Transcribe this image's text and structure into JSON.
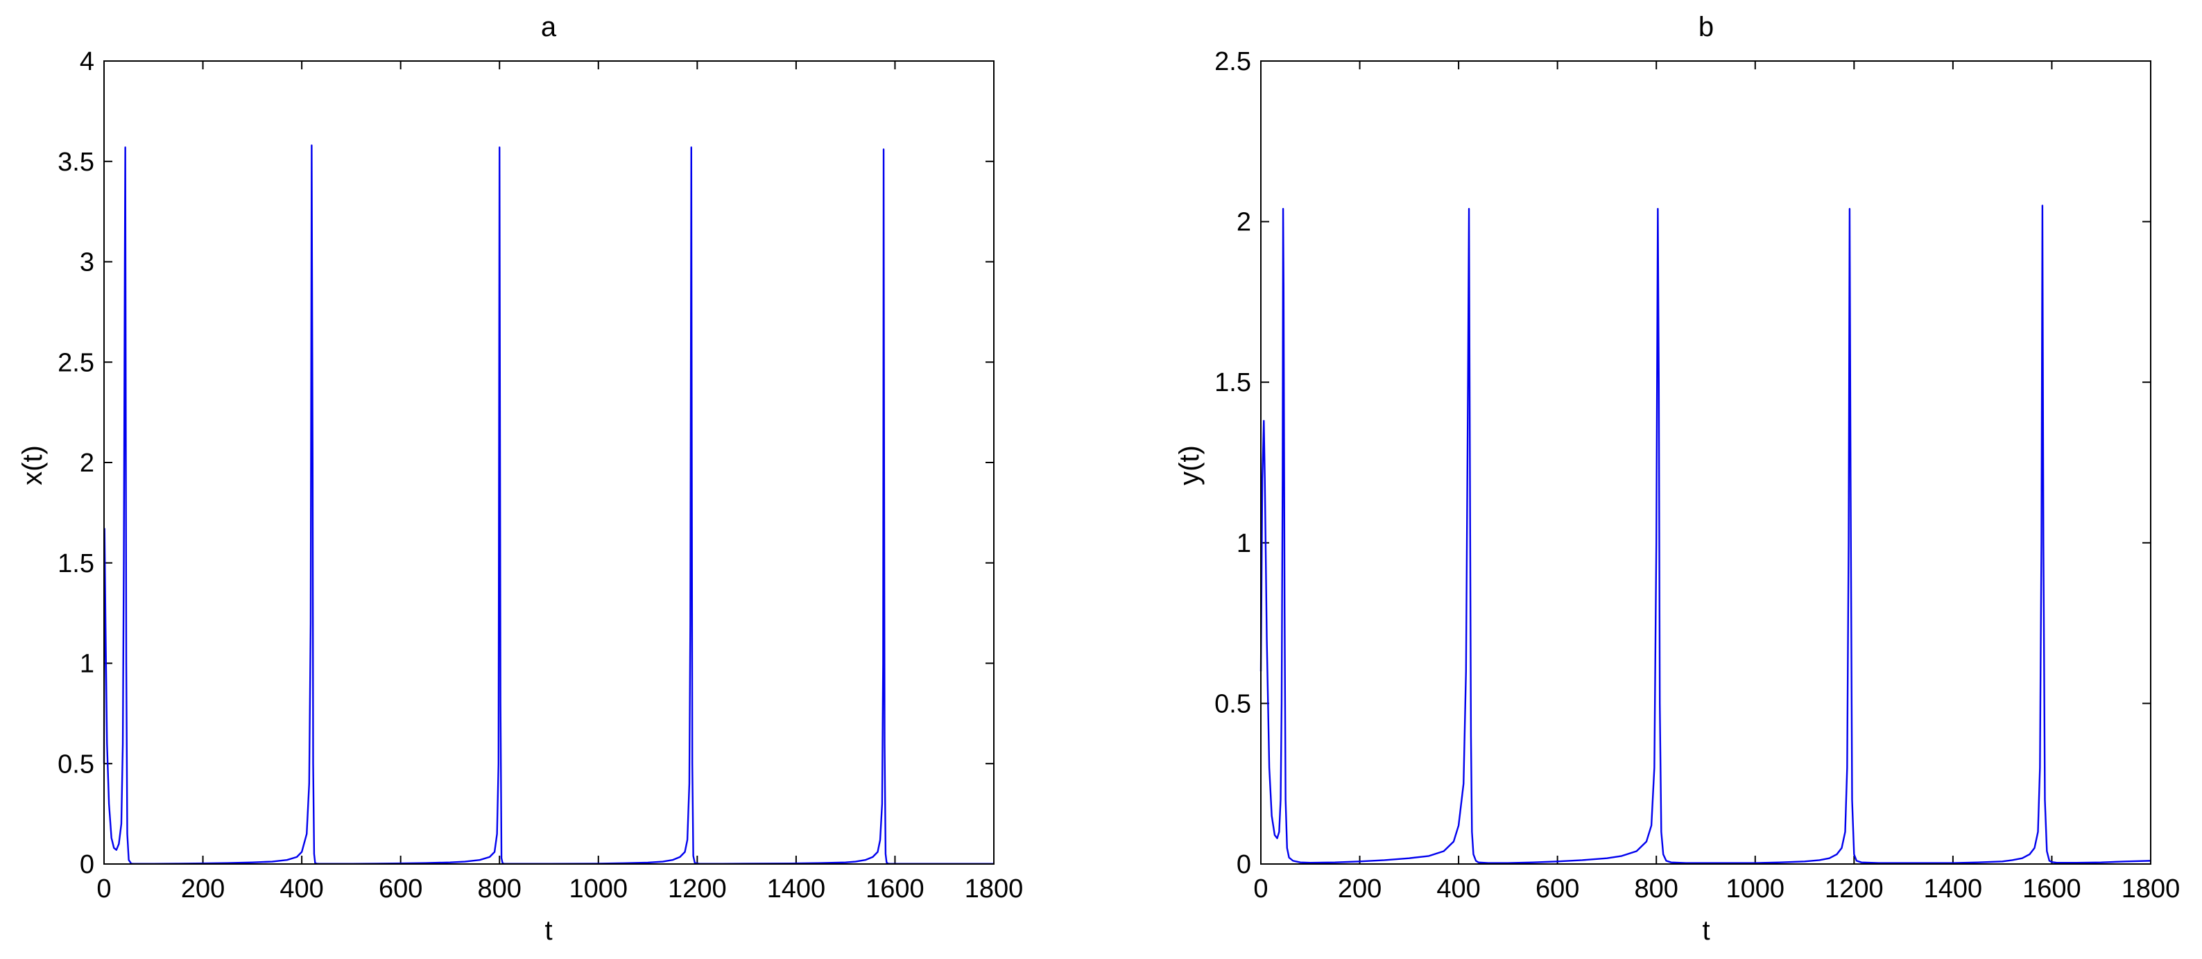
{
  "colors": {
    "line": "#0000ee",
    "axes": "#000000",
    "background": "#ffffff"
  },
  "chart_data": [
    {
      "type": "line",
      "title": "a",
      "xlabel": "t",
      "ylabel": "x(t)",
      "xlim": [
        0,
        1800
      ],
      "ylim": [
        0,
        4
      ],
      "xticks": [
        0,
        200,
        400,
        600,
        800,
        1000,
        1200,
        1400,
        1600,
        1800
      ],
      "xtick_labels": [
        "0",
        "200",
        "400",
        "600",
        "800",
        "1000",
        "1200",
        "1400",
        "1600",
        "1800"
      ],
      "yticks": [
        0,
        0.5,
        1,
        1.5,
        2,
        2.5,
        3,
        3.5,
        4
      ],
      "ytick_labels": [
        "0",
        "0.5",
        "1",
        "1.5",
        "2",
        "2.5",
        "3",
        "3.5",
        "4"
      ],
      "grid": false,
      "series": [
        {
          "x": [
            0,
            1,
            3,
            6,
            10,
            15,
            20,
            25,
            30,
            35,
            38,
            40,
            42,
            43,
            45,
            47,
            50,
            55,
            60,
            80,
            100,
            150,
            200,
            250,
            300,
            340,
            370,
            390,
            400,
            410,
            415,
            418,
            420,
            422,
            423,
            425,
            427,
            430,
            435,
            440,
            460,
            500,
            550,
            600,
            650,
            700,
            730,
            760,
            780,
            790,
            795,
            798,
            800,
            802,
            804,
            806,
            808,
            810,
            815,
            820,
            850,
            900,
            1000,
            1050,
            1100,
            1130,
            1150,
            1165,
            1175,
            1180,
            1184,
            1186,
            1188,
            1190,
            1192,
            1195,
            1200,
            1205,
            1210,
            1250,
            1300,
            1400,
            1450,
            1500,
            1520,
            1540,
            1555,
            1565,
            1570,
            1574,
            1576,
            1577,
            1579,
            1581,
            1583,
            1586,
            1590,
            1600,
            1650,
            1700,
            1750,
            1800
          ],
          "y": [
            0.5,
            1.67,
            1.2,
            0.6,
            0.3,
            0.13,
            0.08,
            0.07,
            0.1,
            0.2,
            0.6,
            1.5,
            3.0,
            3.57,
            1.0,
            0.15,
            0.02,
            0.002,
            0.001,
            0.001,
            0.001,
            0.002,
            0.003,
            0.005,
            0.008,
            0.012,
            0.02,
            0.035,
            0.06,
            0.15,
            0.4,
            1.2,
            3.58,
            2.0,
            0.5,
            0.05,
            0.005,
            0.002,
            0.001,
            0.001,
            0.001,
            0.001,
            0.002,
            0.003,
            0.005,
            0.008,
            0.012,
            0.02,
            0.035,
            0.06,
            0.15,
            0.5,
            3.57,
            0.8,
            0.03,
            0.006,
            0.002,
            0.001,
            0.001,
            0.001,
            0.001,
            0.001,
            0.002,
            0.004,
            0.007,
            0.012,
            0.02,
            0.035,
            0.06,
            0.12,
            0.4,
            1.2,
            3.57,
            0.5,
            0.04,
            0.006,
            0.003,
            0.001,
            0.001,
            0.001,
            0.002,
            0.003,
            0.005,
            0.008,
            0.012,
            0.02,
            0.035,
            0.06,
            0.12,
            0.3,
            1.0,
            3.56,
            0.6,
            0.05,
            0.008,
            0.002,
            0.001,
            0.001,
            0.001,
            0.001,
            0.001,
            0.001
          ]
        }
      ]
    },
    {
      "type": "line",
      "title": "b",
      "xlabel": "t",
      "ylabel": "y(t)",
      "xlim": [
        0,
        1800
      ],
      "ylim": [
        0,
        2.5
      ],
      "xticks": [
        0,
        200,
        400,
        600,
        800,
        1000,
        1200,
        1400,
        1600,
        1800
      ],
      "xtick_labels": [
        "0",
        "200",
        "400",
        "600",
        "800",
        "1000",
        "1200",
        "1400",
        "1600",
        "1800"
      ],
      "yticks": [
        0,
        0.5,
        1,
        1.5,
        2,
        2.5
      ],
      "ytick_labels": [
        "0",
        "0.5",
        "1",
        "1.5",
        "2",
        "2.5"
      ],
      "grid": false,
      "series": [
        {
          "x": [
            0,
            3,
            6,
            8,
            12,
            17,
            22,
            28,
            33,
            37,
            40,
            42,
            44,
            45,
            46,
            48,
            50,
            53,
            57,
            65,
            80,
            100,
            150,
            200,
            250,
            300,
            340,
            370,
            390,
            400,
            410,
            415,
            419,
            421,
            423,
            425,
            427,
            430,
            435,
            440,
            460,
            500,
            550,
            600,
            650,
            700,
            730,
            760,
            780,
            790,
            796,
            800,
            803,
            805,
            807,
            810,
            814,
            820,
            830,
            860,
            900,
            1000,
            1050,
            1100,
            1130,
            1150,
            1165,
            1175,
            1182,
            1186,
            1189,
            1191,
            1193,
            1196,
            1200,
            1205,
            1215,
            1250,
            1300,
            1400,
            1450,
            1500,
            1520,
            1540,
            1555,
            1565,
            1572,
            1576,
            1579,
            1581,
            1583,
            1586,
            1590,
            1595,
            1600,
            1610,
            1650,
            1700,
            1750,
            1800
          ],
          "y": [
            0.6,
            1.2,
            1.38,
            1.2,
            0.7,
            0.3,
            0.15,
            0.09,
            0.08,
            0.1,
            0.2,
            0.5,
            1.2,
            2.04,
            1.8,
            0.8,
            0.2,
            0.05,
            0.02,
            0.01,
            0.005,
            0.004,
            0.005,
            0.008,
            0.012,
            0.018,
            0.025,
            0.04,
            0.07,
            0.12,
            0.25,
            0.6,
            1.5,
            2.04,
            1.2,
            0.4,
            0.1,
            0.03,
            0.01,
            0.005,
            0.003,
            0.003,
            0.005,
            0.008,
            0.012,
            0.018,
            0.025,
            0.04,
            0.07,
            0.12,
            0.3,
            1.0,
            2.04,
            1.5,
            0.5,
            0.1,
            0.03,
            0.01,
            0.005,
            0.003,
            0.003,
            0.003,
            0.005,
            0.008,
            0.012,
            0.018,
            0.03,
            0.05,
            0.1,
            0.3,
            1.0,
            2.04,
            1.2,
            0.2,
            0.03,
            0.01,
            0.005,
            0.003,
            0.003,
            0.003,
            0.005,
            0.008,
            0.012,
            0.018,
            0.03,
            0.05,
            0.1,
            0.3,
            1.0,
            2.05,
            1.0,
            0.2,
            0.04,
            0.01,
            0.006,
            0.004,
            0.004,
            0.005,
            0.008,
            0.01
          ]
        }
      ]
    }
  ]
}
